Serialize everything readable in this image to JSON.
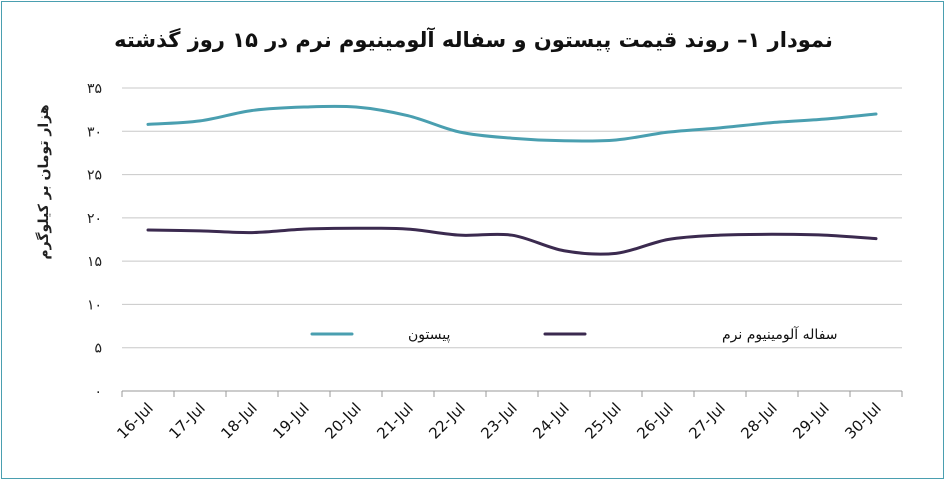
{
  "chart_data": {
    "type": "line",
    "title": "نمودار ۱– روند قیمت پیستون و سفاله آلومینیوم نرم در ۱۵ روز گذشته",
    "xlabel": "",
    "ylabel": "هزار تومان بر کیلوگرم",
    "ylim": [
      0,
      35
    ],
    "y_ticks": [
      0,
      5,
      10,
      15,
      20,
      25,
      30,
      35
    ],
    "y_tick_labels": [
      "۰",
      "۵",
      "۱۰",
      "۱۵",
      "۲۰",
      "۲۵",
      "۳۰",
      "۳۵"
    ],
    "categories": [
      "16-Jul",
      "17-Jul",
      "18-Jul",
      "19-Jul",
      "20-Jul",
      "21-Jul",
      "22-Jul",
      "23-Jul",
      "24-Jul",
      "25-Jul",
      "26-Jul",
      "27-Jul",
      "28-Jul",
      "29-Jul",
      "30-Jul"
    ],
    "grid": true,
    "legend_position": "bottom-center",
    "series": [
      {
        "name": "پیستون",
        "color": "#4a9fb0",
        "values": [
          30.8,
          31.2,
          32.4,
          32.8,
          32.8,
          31.8,
          29.9,
          29.2,
          28.9,
          29.0,
          29.9,
          30.4,
          31.0,
          31.4,
          32.0
        ]
      },
      {
        "name": "سفاله آلومینیوم نرم",
        "color": "#3b2a4f",
        "values": [
          18.6,
          18.5,
          18.3,
          18.7,
          18.8,
          18.7,
          18.0,
          18.0,
          16.2,
          15.9,
          17.5,
          18.0,
          18.1,
          18.0,
          17.6
        ]
      }
    ]
  }
}
